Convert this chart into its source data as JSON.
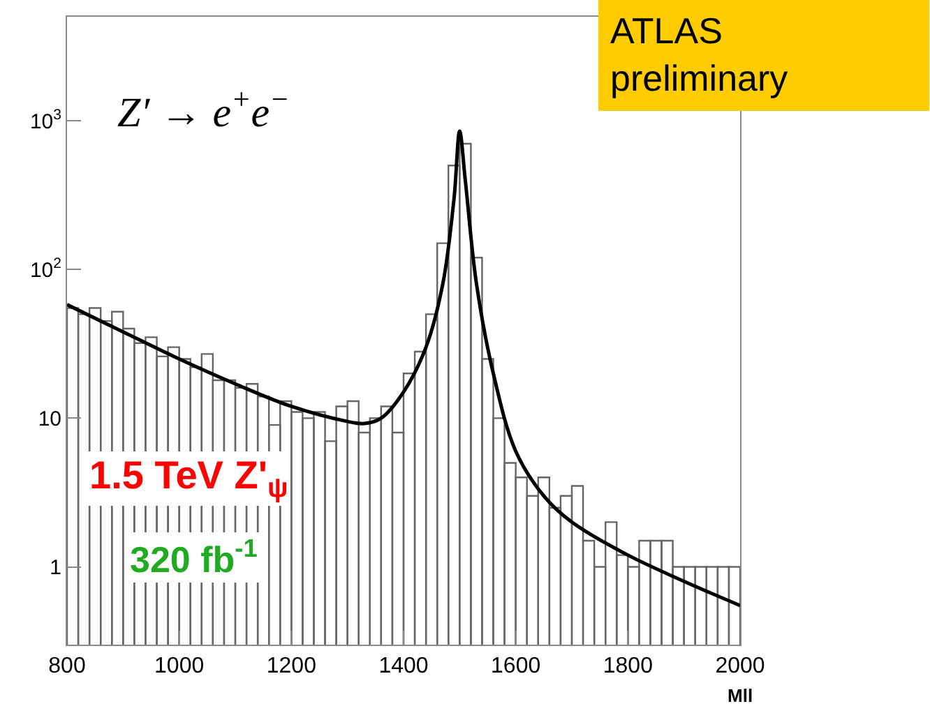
{
  "chart_data": {
    "type": "histogram",
    "xlabel": "Mll",
    "log": true,
    "bins": [
      800,
      820,
      840,
      860,
      880,
      900,
      920,
      940,
      960,
      980,
      1000,
      1020,
      1040,
      1060,
      1080,
      1100,
      1120,
      1140,
      1160,
      1180,
      1200,
      1220,
      1240,
      1260,
      1280,
      1300,
      1320,
      1340,
      1360,
      1380,
      1400,
      1420,
      1440,
      1460,
      1480,
      1500,
      1520,
      1540,
      1560,
      1580,
      1600,
      1620,
      1640,
      1660,
      1680,
      1700,
      1720,
      1740,
      1760,
      1780,
      1800,
      1820,
      1840,
      1860,
      1880,
      1900,
      1920,
      1940,
      1960,
      1980,
      2000
    ],
    "values": [
      55,
      50,
      55,
      45,
      52,
      40,
      32,
      35,
      26,
      30,
      25,
      22,
      27,
      18,
      18,
      16,
      17,
      14,
      9,
      13,
      11,
      10,
      11,
      7,
      12,
      13,
      8,
      10,
      12,
      8,
      20,
      28,
      50,
      150,
      500,
      700,
      120,
      25,
      10,
      5,
      4,
      3,
      4,
      2.5,
      3,
      3.5,
      1.5,
      1,
      2,
      1.2,
      1,
      1.5,
      1.5,
      1.5,
      1,
      1,
      1,
      1,
      1,
      1
    ],
    "color": "#666666",
    "series": [
      {
        "type": "line",
        "color": "#000000",
        "x": [
          800,
          900,
          1000,
          1100,
          1200,
          1300,
          1330,
          1360,
          1400,
          1440,
          1470,
          1490,
          1500,
          1510,
          1530,
          1560,
          1600,
          1650,
          1700,
          1800,
          1900,
          2000
        ],
        "values": [
          58,
          38,
          25,
          17,
          12,
          9.5,
          9.2,
          10,
          15,
          30,
          80,
          300,
          850,
          400,
          80,
          20,
          6,
          3,
          2,
          1.2,
          0.8,
          0.55
        ]
      }
    ],
    "xlim": [
      800,
      2000
    ],
    "xticks": [
      800,
      1000,
      1200,
      1400,
      1600,
      1800,
      2000
    ],
    "ylim": [
      0.3,
      5000
    ],
    "yticks": [
      {
        "value": 1,
        "label": "1"
      },
      {
        "value": 10,
        "label": "10"
      },
      {
        "value": 100,
        "label": "10$^{2}$"
      },
      {
        "value": 1000,
        "label": "10$^{3}$"
      }
    ],
    "annotations": [
      "Z′ → e$^{+}$e$^{−}$",
      "1.5 TeV Z'$_{ψ}$",
      "320 fb$^{-1}$",
      "ATLAS preliminary"
    ]
  }
}
